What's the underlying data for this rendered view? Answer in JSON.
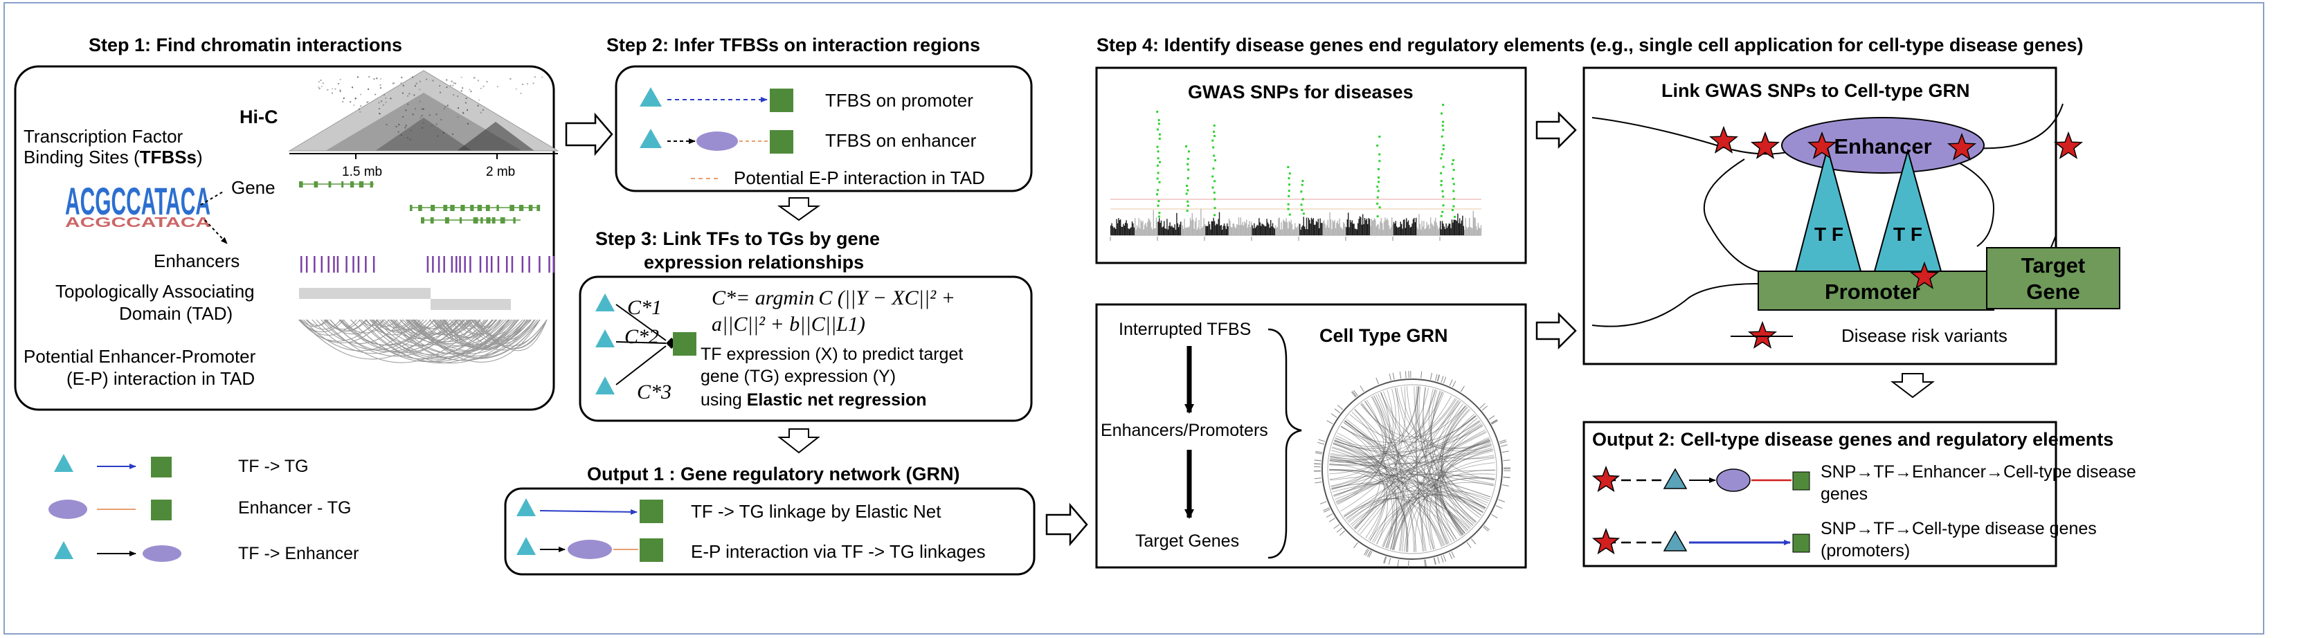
{
  "step1": {
    "title": "Step 1:   Find chromatin interactions",
    "hic_label": "Hi-C",
    "tfbs_line1": "Transcription Factor",
    "tfbs_line2": "Binding Sites (",
    "tfbs_abbr": "TFBSs",
    "tfbs_close": ")",
    "motif": "ACGCCATACA",
    "gene_label": "Gene",
    "scale_left": "1.5 mb",
    "scale_right": "2 mb",
    "enhancers_label": "Enhancers",
    "tad_line1": "Topologically Associating",
    "tad_line2": "Domain (TAD)",
    "ep_line1": "Potential Enhancer-Promoter",
    "ep_line2": "(E-P) interaction in TAD"
  },
  "legend": {
    "tf_tg": "TF -> TG",
    "enh_tg": "Enhancer - TG",
    "tf_enh": "TF -> Enhancer"
  },
  "step2": {
    "title": "Step 2:  Infer TFBSs on interaction regions",
    "promoter": "TFBS on promoter",
    "enhancer": "TFBS on enhancer",
    "potential": "Potential E-P interaction in TAD"
  },
  "step3": {
    "title_line1": "Step 3:  Link TFs to TGs by gene",
    "title_line2": "expression relationships",
    "eq_line1": "C*= argmin C (||Y − XC||² +",
    "eq_line2": "a||C||² + b||C||L1)",
    "c1": "C*1",
    "c2": "C*2",
    "c3": "C*3",
    "desc_line1": "TF expression (X) to predict target",
    "desc_line2": "gene (TG) expression (Y)",
    "desc_line3_plain": "using ",
    "desc_line3_bold": "Elastic net regression"
  },
  "output1": {
    "title": "Output 1 :  Gene regulatory network (GRN)",
    "row1": "TF -> TG linkage by Elastic Net",
    "row2": "E-P interaction via TF -> TG  linkages"
  },
  "step4": {
    "title": "Step 4:  Identify disease genes end regulatory elements (e.g., single cell application for cell-type disease genes)",
    "gwas_title": "GWAS SNPs for diseases",
    "interrupted": "Interrupted TFBS",
    "enh_prom": "Enhancers/Promoters",
    "target_genes": "Target Genes",
    "celltype_grn": "Cell Type GRN",
    "link_title": "Link GWAS SNPs to Cell-type GRN",
    "enhancer": "Enhancer",
    "tf": "T F",
    "promoter": "Promoter",
    "target_gene_line1": "Target",
    "target_gene_line2": "Gene",
    "risk": "Disease risk variants"
  },
  "output2": {
    "title": "Output 2: Cell-type disease genes and regulatory elements",
    "row1_line1": "SNP→TF→Enhancer→Cell-type disease",
    "row1_line2": "genes",
    "row2_line1": "SNP→TF→Cell-type disease genes",
    "row2_line2": "(promoters)"
  },
  "colors": {
    "tf_teal": "#4bb8c9",
    "tg_green": "#4f8a3a",
    "enhancer_purple": "#9b8ed0",
    "promoter_green": "#6f9a5a",
    "star_red": "#d21f1f",
    "gwas_green": "#2fd12f",
    "gene_green": "#5a9a40",
    "enh_bar_purple": "#7a3fa6"
  }
}
